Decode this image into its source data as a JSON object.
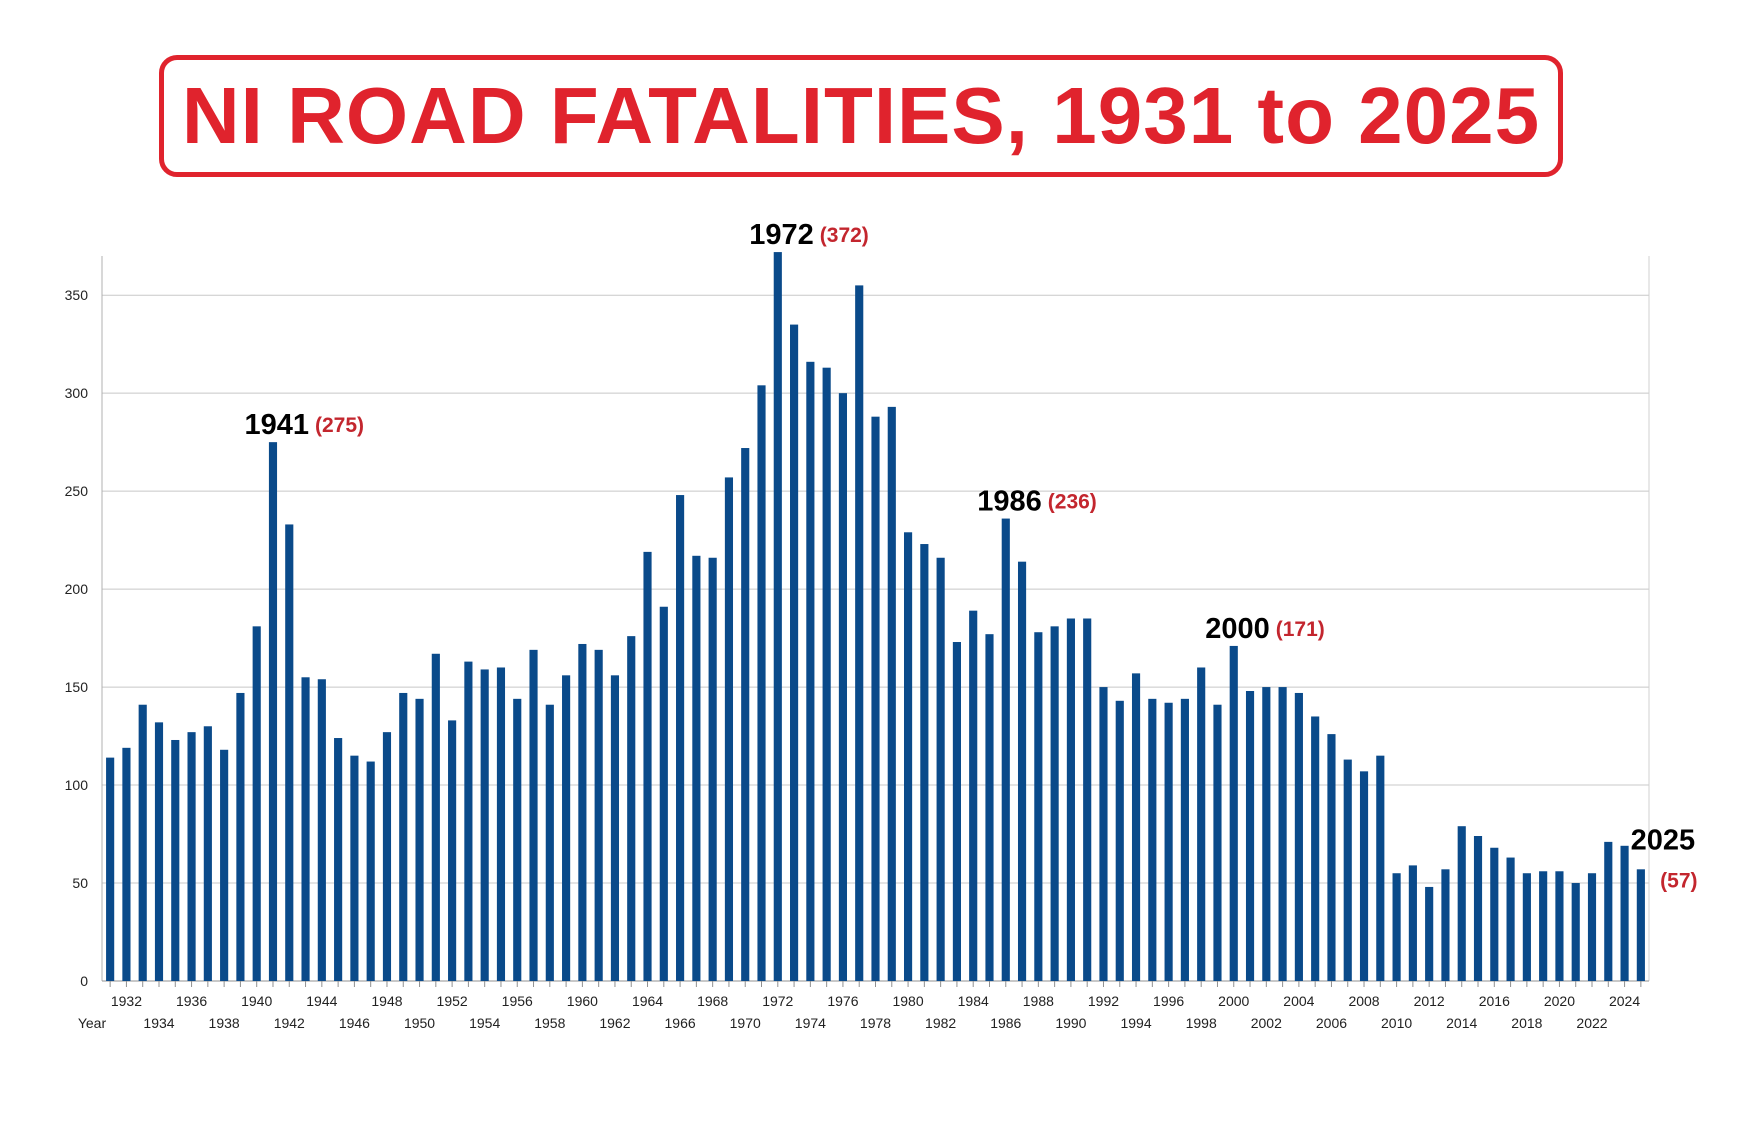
{
  "title": "NI ROAD FATALITIES, 1931 to 2025",
  "chart_data": {
    "type": "bar",
    "xlabel": "Year",
    "ylabel": "",
    "ylim": [
      0,
      370
    ],
    "yticks": [
      0,
      50,
      100,
      150,
      200,
      250,
      300,
      350
    ],
    "grid": true,
    "bar_color": "#0a4a8a",
    "start_year": 1931,
    "x": [
      1931,
      1932,
      1933,
      1934,
      1935,
      1936,
      1937,
      1938,
      1939,
      1940,
      1941,
      1942,
      1943,
      1944,
      1945,
      1946,
      1947,
      1948,
      1949,
      1950,
      1951,
      1952,
      1953,
      1954,
      1955,
      1956,
      1957,
      1958,
      1959,
      1960,
      1961,
      1962,
      1963,
      1964,
      1965,
      1966,
      1967,
      1968,
      1969,
      1970,
      1971,
      1972,
      1973,
      1974,
      1975,
      1976,
      1977,
      1978,
      1979,
      1980,
      1981,
      1982,
      1983,
      1984,
      1985,
      1986,
      1987,
      1988,
      1989,
      1990,
      1991,
      1992,
      1993,
      1994,
      1995,
      1996,
      1997,
      1998,
      1999,
      2000,
      2001,
      2002,
      2003,
      2004,
      2005,
      2006,
      2007,
      2008,
      2009,
      2010,
      2011,
      2012,
      2013,
      2014,
      2015,
      2016,
      2017,
      2018,
      2019,
      2020,
      2021,
      2022,
      2023,
      2024,
      2025
    ],
    "values": [
      114,
      119,
      141,
      132,
      123,
      127,
      130,
      118,
      147,
      181,
      275,
      233,
      155,
      154,
      124,
      115,
      112,
      127,
      147,
      144,
      167,
      133,
      163,
      159,
      160,
      144,
      169,
      141,
      156,
      172,
      169,
      156,
      176,
      219,
      191,
      248,
      217,
      216,
      257,
      272,
      304,
      372,
      335,
      316,
      313,
      300,
      355,
      288,
      293,
      229,
      223,
      216,
      173,
      189,
      177,
      236,
      214,
      178,
      181,
      185,
      185,
      150,
      143,
      157,
      144,
      142,
      144,
      160,
      141,
      171,
      148,
      150,
      150,
      147,
      135,
      126,
      113,
      107,
      115,
      55,
      59,
      48,
      57,
      79,
      74,
      68,
      63,
      55,
      56,
      56,
      50,
      55,
      71,
      69,
      57
    ],
    "tick_labels_top": [
      "1932",
      "1936",
      "1940",
      "1944",
      "1948",
      "1952",
      "1956",
      "1960",
      "1964",
      "1968",
      "1972",
      "1976",
      "1980",
      "1984",
      "1988",
      "1992",
      "1996",
      "2000",
      "2004",
      "2008",
      "2012",
      "2016",
      "2020",
      "2024"
    ],
    "tick_labels_bottom": [
      "1934",
      "1938",
      "1942",
      "1946",
      "1950",
      "1954",
      "1958",
      "1962",
      "1966",
      "1970",
      "1974",
      "1978",
      "1982",
      "1986",
      "1990",
      "1994",
      "1998",
      "2002",
      "2006",
      "2010",
      "2014",
      "2018",
      "2022"
    ],
    "annotations": [
      {
        "year": "1941",
        "value": "(275)"
      },
      {
        "year": "1972",
        "value": "(372)"
      },
      {
        "year": "1986",
        "value": "(236)"
      },
      {
        "year": "2000",
        "value": "(171)"
      },
      {
        "year": "2025",
        "value": "(57)"
      }
    ]
  }
}
